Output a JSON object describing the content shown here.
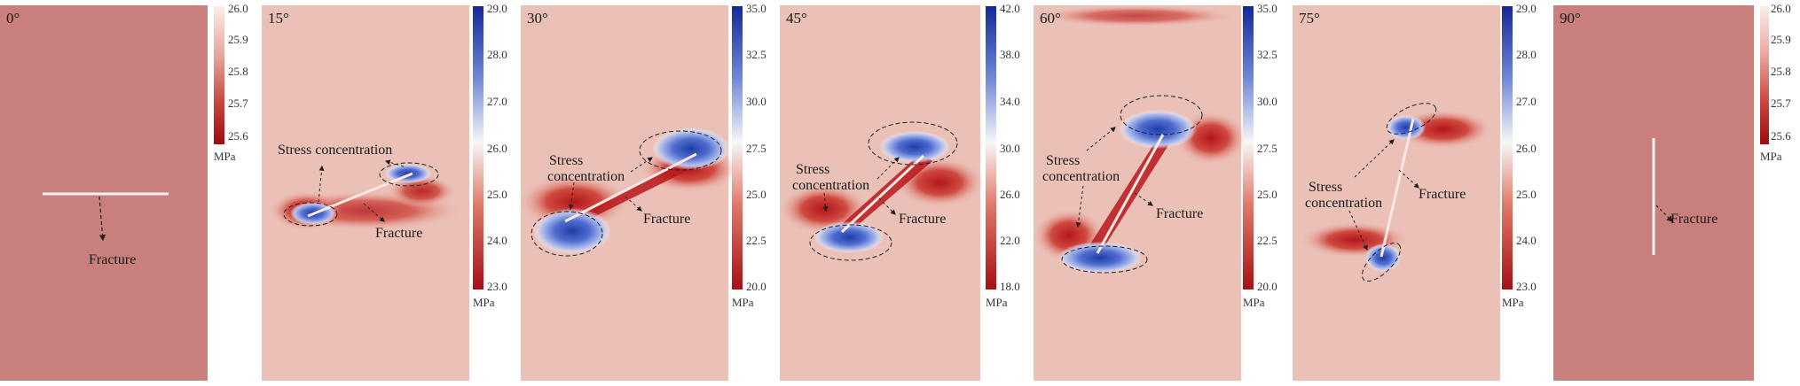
{
  "figure": {
    "panels": [
      {
        "angle": "0°",
        "colorbar": {
          "ticks": [
            "26.0",
            "25.9",
            "25.8",
            "25.7",
            "25.6"
          ],
          "unit": "MPa",
          "scale": "red"
        },
        "labels": [
          {
            "text": "Fracture"
          }
        ]
      },
      {
        "angle": "15°",
        "colorbar": {
          "ticks": [
            "29.0",
            "28.0",
            "27.0",
            "26.0",
            "25.0",
            "24.0",
            "23.0"
          ],
          "unit": "MPa",
          "scale": "diverging"
        },
        "labels": [
          {
            "text": "Stress concentration"
          },
          {
            "text": "Fracture"
          }
        ]
      },
      {
        "angle": "30°",
        "colorbar": {
          "ticks": [
            "35.0",
            "32.5",
            "30.0",
            "27.5",
            "25.0",
            "22.5",
            "20.0"
          ],
          "unit": "MPa",
          "scale": "diverging"
        },
        "labels": [
          {
            "text": "Stress"
          },
          {
            "text": "concentration"
          },
          {
            "text": "Fracture"
          }
        ]
      },
      {
        "angle": "45°",
        "colorbar": {
          "ticks": [
            "42.0",
            "38.0",
            "34.0",
            "30.0",
            "26.0",
            "22.0",
            "18.0"
          ],
          "unit": "MPa",
          "scale": "diverging"
        },
        "labels": [
          {
            "text": "Stress"
          },
          {
            "text": "concentration"
          },
          {
            "text": "Fracture"
          }
        ]
      },
      {
        "angle": "60°",
        "colorbar": {
          "ticks": [
            "35.0",
            "32.5",
            "30.0",
            "27.5",
            "25.0",
            "22.5",
            "20.0"
          ],
          "unit": "MPa",
          "scale": "diverging"
        },
        "labels": [
          {
            "text": "Stress"
          },
          {
            "text": "concentration"
          },
          {
            "text": "Fracture"
          }
        ]
      },
      {
        "angle": "75°",
        "colorbar": {
          "ticks": [
            "29.0",
            "28.0",
            "27.0",
            "26.0",
            "25.0",
            "24.0",
            "23.0"
          ],
          "unit": "MPa",
          "scale": "diverging"
        },
        "labels": [
          {
            "text": "Stress"
          },
          {
            "text": "concentration"
          },
          {
            "text": "Fracture"
          }
        ]
      },
      {
        "angle": "90°",
        "colorbar": {
          "ticks": [
            "26.0",
            "25.9",
            "25.8",
            "25.7",
            "25.6"
          ],
          "unit": "MPa",
          "scale": "red"
        },
        "labels": [
          {
            "text": "Fracture"
          }
        ]
      }
    ],
    "colors": {
      "uniform_red": "#c97f7b",
      "dark_red": "#b2181b",
      "light_red": "#f0c5bc",
      "white": "#f7f7f7",
      "blue": "#2142a8",
      "light_blue": "#9fb3e6"
    }
  }
}
